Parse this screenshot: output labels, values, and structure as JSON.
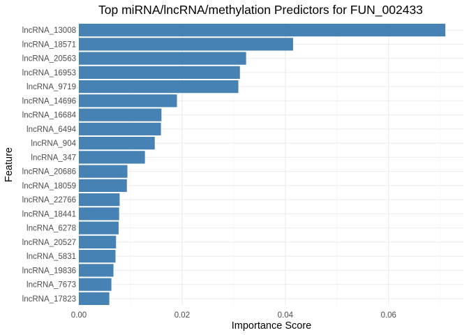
{
  "chart_data": {
    "type": "bar",
    "orientation": "horizontal",
    "title": "Top miRNA/lncRNA/methylation Predictors for FUN_002433",
    "xlabel": "Importance Score",
    "ylabel": "Feature",
    "xlim": [
      0,
      0.0745
    ],
    "xticks": [
      0.0,
      0.02,
      0.04,
      0.06
    ],
    "xtick_labels": [
      "0.00",
      "0.02",
      "0.04",
      "0.06"
    ],
    "grid": true,
    "bar_color": "#4682B4",
    "categories": [
      "lncRNA_13008",
      "lncRNA_18571",
      "lncRNA_20563",
      "lncRNA_16953",
      "lncRNA_9719",
      "lncRNA_14696",
      "lncRNA_16684",
      "lncRNA_6494",
      "lncRNA_904",
      "lncRNA_347",
      "lncRNA_20686",
      "lncRNA_18059",
      "lncRNA_22766",
      "lncRNA_18441",
      "lncRNA_6278",
      "lncRNA_20527",
      "lncRNA_5831",
      "lncRNA_19836",
      "lncRNA_7673",
      "lncRNA_17823"
    ],
    "values": [
      0.071,
      0.0415,
      0.0324,
      0.0312,
      0.0309,
      0.019,
      0.016,
      0.0159,
      0.0147,
      0.0128,
      0.0094,
      0.0093,
      0.0079,
      0.0078,
      0.0077,
      0.0072,
      0.0071,
      0.0067,
      0.0063,
      0.0059
    ]
  }
}
